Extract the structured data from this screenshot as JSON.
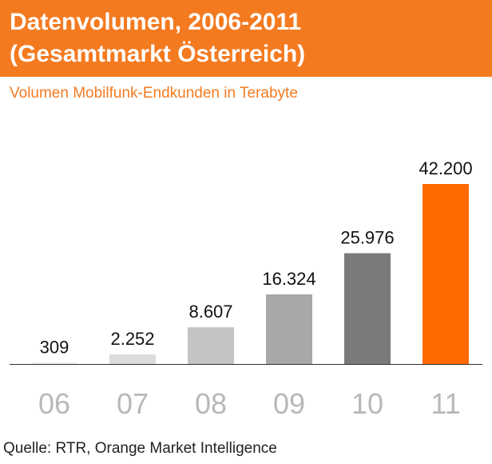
{
  "header": {
    "title_line1": "Datenvolumen, 2006-2011",
    "title_line2": "(Gesamtmarkt Österreich)",
    "background_color": "#f47a20"
  },
  "subtitle": "Volumen Mobilfunk-Endkunden in Terabyte",
  "source": "Quelle: RTR, Orange Market Intelligence",
  "chart_data": {
    "type": "bar",
    "title": "Datenvolumen, 2006-2011 (Gesamtmarkt Österreich)",
    "subtitle": "Volumen Mobilfunk-Endkunden in Terabyte",
    "categories": [
      "06",
      "07",
      "08",
      "09",
      "10",
      "11"
    ],
    "values": [
      309,
      2252,
      8607,
      16324,
      25976,
      42200
    ],
    "value_labels": [
      "309",
      "2.252",
      "8.607",
      "16.324",
      "25.976",
      "42.200"
    ],
    "colors": [
      "#ececec",
      "#dcdcdc",
      "#c4c4c4",
      "#a8a8a8",
      "#7a7a7a",
      "#ff6a00"
    ],
    "ylim": [
      0,
      42200
    ],
    "grid": false,
    "legend": "none"
  }
}
